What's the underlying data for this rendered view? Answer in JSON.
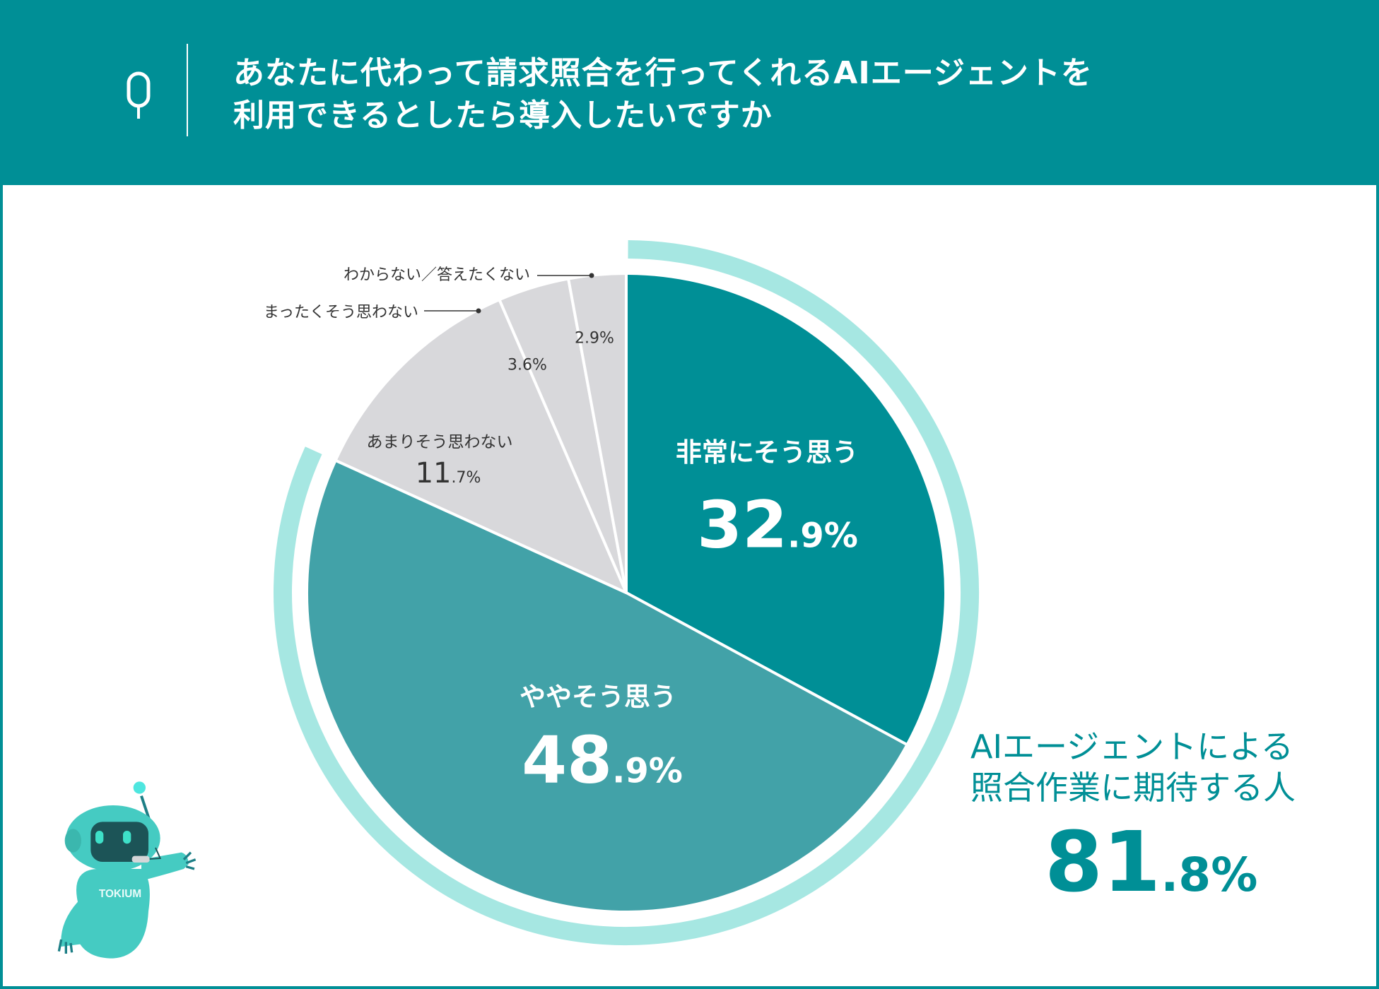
{
  "header": {
    "question_mark": "Q",
    "title_line1": "あなたに代わって請求照合を行ってくれるAIエージェントを",
    "title_line2": "利用できるとしたら導入したいですか"
  },
  "chart_data": {
    "type": "pie",
    "title": "あなたに代わって請求照合を行ってくれるAIエージェントを利用できるとしたら導入したいですか",
    "unit": "%",
    "start": "top",
    "direction": "clockwise",
    "slices": [
      {
        "label": "非常にそう思う",
        "value": 32.9,
        "int": "32",
        "dec": ".9%",
        "color": "#008f96"
      },
      {
        "label": "ややそう思う",
        "value": 48.9,
        "int": "48",
        "dec": ".9%",
        "color": "#42a2a8"
      },
      {
        "label": "あまりそう思わない",
        "value": 11.7,
        "int": "11",
        "dec": ".7%",
        "color": "#d8d8db"
      },
      {
        "label": "まったくそう思わない",
        "value": 3.6,
        "text": "3.6%",
        "color": "#d8d8db"
      },
      {
        "label": "わからない／答えたくない",
        "value": 2.9,
        "text": "2.9%",
        "color": "#d8d8db"
      }
    ],
    "highlight_ring": {
      "value": 81.8,
      "color": "#a6e7e2"
    },
    "summary": {
      "line1": "AIエージェントによる",
      "line2": "照合作業に期待する人",
      "int": "81",
      "dec": ".8%"
    }
  },
  "mascot": {
    "logo_text": "TOKIUM"
  }
}
